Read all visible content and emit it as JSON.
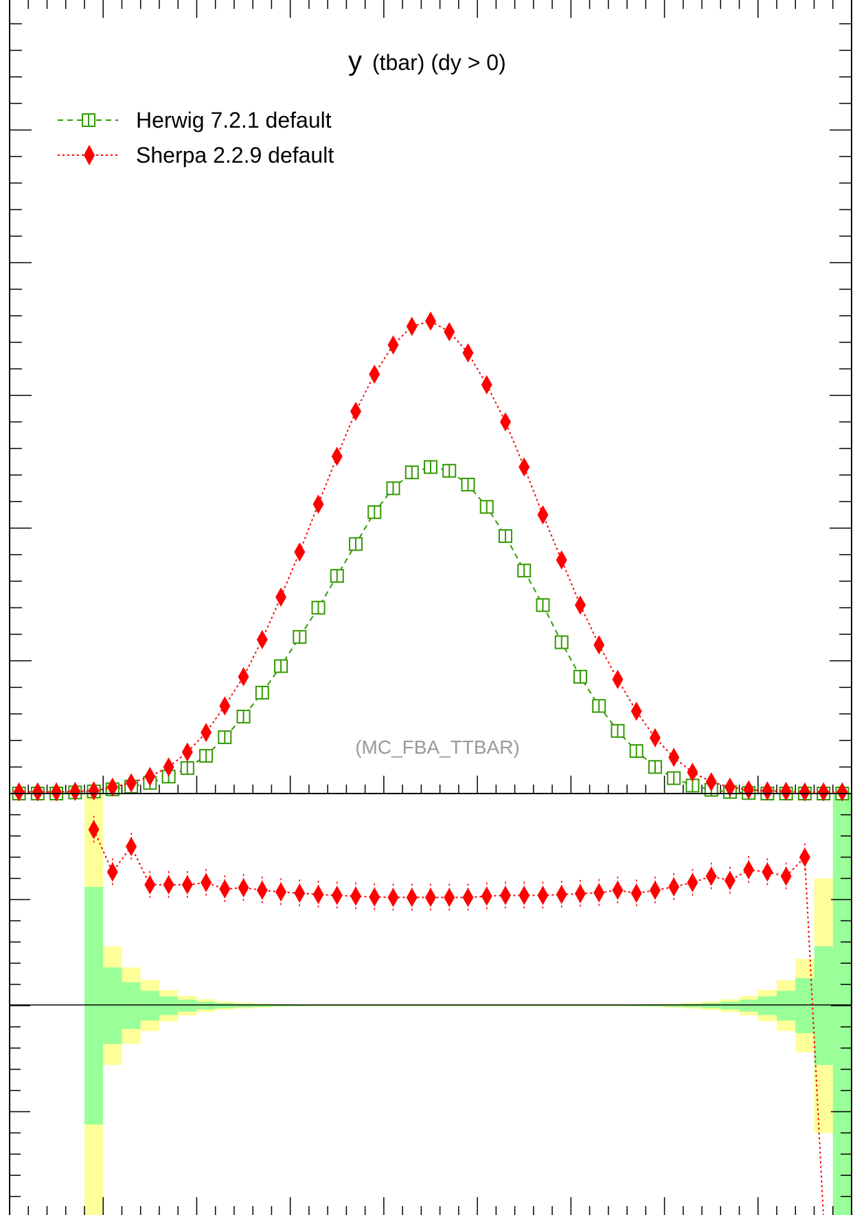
{
  "chart_data": [
    {
      "type": "line",
      "title": "y (tbar) (dy > 0)",
      "watermark": "(MC_FBA_TTBAR)",
      "xlim": [
        -2.5,
        2.0
      ],
      "ylim": [
        0,
        1.5
      ],
      "grid": false,
      "legend_position": "top-left",
      "x": [
        -2.45,
        -2.35,
        -2.25,
        -2.15,
        -2.05,
        -1.95,
        -1.85,
        -1.75,
        -1.65,
        -1.55,
        -1.45,
        -1.35,
        -1.25,
        -1.15,
        -1.05,
        -0.95,
        -0.85,
        -0.75,
        -0.65,
        -0.55,
        -0.45,
        -0.35,
        -0.25,
        -0.15,
        -0.05,
        0.05,
        0.15,
        0.25,
        0.35,
        0.45,
        0.55,
        0.65,
        0.75,
        0.85,
        0.95,
        1.05,
        1.15,
        1.25,
        1.35,
        1.45,
        1.55,
        1.65,
        1.75,
        1.85,
        1.95
      ],
      "series": [
        {
          "name": "Herwig 7.2.1 default",
          "color": "#339900",
          "line": "dashed",
          "marker": "open-square",
          "values": [
            0,
            0,
            0,
            0.002,
            0.004,
            0.008,
            0.013,
            0.02,
            0.032,
            0.048,
            0.071,
            0.106,
            0.145,
            0.19,
            0.24,
            0.295,
            0.35,
            0.41,
            0.47,
            0.53,
            0.575,
            0.605,
            0.615,
            0.608,
            0.582,
            0.54,
            0.485,
            0.42,
            0.355,
            0.285,
            0.22,
            0.165,
            0.118,
            0.08,
            0.05,
            0.029,
            0.015,
            0.007,
            0.003,
            0.001,
            0,
            0,
            0,
            0,
            0
          ]
        },
        {
          "name": "Sherpa 2.2.9 default",
          "color": "#ff0000",
          "line": "dotted",
          "marker": "diamond",
          "values": [
            0.003,
            0.003,
            0.003,
            0.004,
            0.005,
            0.012,
            0.02,
            0.032,
            0.05,
            0.078,
            0.115,
            0.165,
            0.22,
            0.29,
            0.37,
            0.455,
            0.545,
            0.635,
            0.72,
            0.79,
            0.845,
            0.88,
            0.89,
            0.87,
            0.83,
            0.77,
            0.7,
            0.615,
            0.525,
            0.44,
            0.355,
            0.28,
            0.215,
            0.155,
            0.105,
            0.068,
            0.04,
            0.022,
            0.012,
            0.007,
            0.005,
            0.004,
            0.003,
            0.003,
            0.003
          ]
        }
      ]
    },
    {
      "type": "line",
      "title": "",
      "xlim": [
        -2.5,
        2.0
      ],
      "ylim": [
        -0.5,
        0.5
      ],
      "reference_line": 0,
      "bands": {
        "x_edges": [
          -2.5,
          -2.4,
          -2.3,
          -2.2,
          -2.1,
          -2.0,
          -1.9,
          -1.8,
          -1.7,
          -1.6,
          -1.5,
          -1.4,
          -1.3,
          -1.2,
          -1.1,
          -1.0,
          -0.9,
          -0.8,
          -0.7,
          -0.6,
          -0.5,
          -0.4,
          -0.3,
          -0.2,
          -0.1,
          0.0,
          0.1,
          0.2,
          0.3,
          0.4,
          0.5,
          0.6,
          0.7,
          0.8,
          0.9,
          1.0,
          1.1,
          1.2,
          1.3,
          1.4,
          1.5,
          1.6,
          1.7,
          1.8,
          1.9,
          2.0
        ],
        "inner_color": "#99ff99",
        "outer_color": "#ffff99",
        "inner": [
          0,
          0,
          0,
          0,
          0.28,
          0.09,
          0.055,
          0.035,
          0.022,
          0.014,
          0.009,
          0.006,
          0.004,
          0.003,
          0.002,
          0.0015,
          0.001,
          0.001,
          0.001,
          0.001,
          0.001,
          0.001,
          0.001,
          0.001,
          0.001,
          0.001,
          0.001,
          0.001,
          0.001,
          0.001,
          0.001,
          0.001,
          0.001,
          0.0015,
          0.002,
          0.003,
          0.004,
          0.006,
          0.009,
          0.014,
          0.022,
          0.035,
          0.065,
          0.14,
          0.5
        ],
        "outer": [
          0,
          0,
          0,
          0,
          0.5,
          0.14,
          0.09,
          0.06,
          0.037,
          0.023,
          0.015,
          0.01,
          0.007,
          0.005,
          0.003,
          0.0025,
          0.002,
          0.002,
          0.002,
          0.002,
          0.002,
          0.002,
          0.002,
          0.002,
          0.002,
          0.002,
          0.002,
          0.002,
          0.002,
          0.002,
          0.002,
          0.002,
          0.002,
          0.0025,
          0.003,
          0.005,
          0.007,
          0.01,
          0.015,
          0.023,
          0.037,
          0.06,
          0.11,
          0.3,
          0.5
        ]
      },
      "series": [
        {
          "name": "Sherpa 2.2.9 default",
          "color": "#ff0000",
          "line": "dotted",
          "marker": "diamond",
          "x": [
            -2.05,
            -1.95,
            -1.85,
            -1.75,
            -1.65,
            -1.55,
            -1.45,
            -1.35,
            -1.25,
            -1.15,
            -1.05,
            -0.95,
            -0.85,
            -0.75,
            -0.65,
            -0.55,
            -0.45,
            -0.35,
            -0.25,
            -0.15,
            -0.05,
            0.05,
            0.15,
            0.25,
            0.35,
            0.45,
            0.55,
            0.65,
            0.75,
            0.85,
            0.95,
            1.05,
            1.15,
            1.25,
            1.35,
            1.45,
            1.55,
            1.65,
            1.75,
            1.85,
            1.95
          ],
          "values": [
            0.415,
            0.315,
            0.375,
            0.285,
            0.285,
            0.285,
            0.29,
            0.275,
            0.278,
            0.272,
            0.268,
            0.265,
            0.262,
            0.26,
            0.258,
            0.256,
            0.255,
            0.255,
            0.255,
            0.255,
            0.255,
            0.258,
            0.26,
            0.26,
            0.26,
            0.262,
            0.264,
            0.266,
            0.272,
            0.265,
            0.272,
            0.28,
            0.29,
            0.305,
            0.295,
            0.32,
            0.315,
            0.305,
            0.35,
            -0.5,
            -0.5
          ]
        }
      ]
    }
  ],
  "labels": {
    "title": "y (tbar) (dy > 0)",
    "watermark": "(MC_FBA_TTBAR)",
    "legend_herwig": "Herwig 7.2.1 default",
    "legend_sherpa": "Sherpa 2.2.9 default"
  }
}
